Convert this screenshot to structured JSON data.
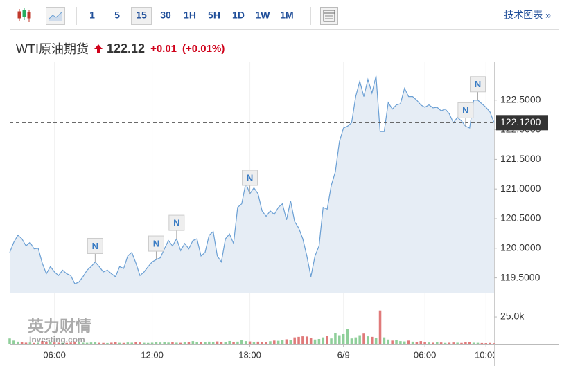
{
  "toolbar": {
    "intervals": [
      "1",
      "5",
      "15",
      "30",
      "1H",
      "5H",
      "1D",
      "1W",
      "1M"
    ],
    "selected_index": 2,
    "tech_chart": "技术图表 »"
  },
  "header": {
    "name": "WTI原油期货",
    "price": "122.12",
    "change": "+0.01",
    "change_pct": "(+0.01%)"
  },
  "watermark": {
    "brand": "英力财情",
    "site": "Investing.com"
  },
  "chart_data": {
    "type": "line",
    "color": "#6a9fd4",
    "fill_color": "#e6edf5",
    "grid": true,
    "values": [
      119.93,
      120.1,
      120.22,
      120.16,
      120.04,
      120.1,
      119.99,
      120.0,
      119.75,
      119.57,
      119.69,
      119.6,
      119.54,
      119.63,
      119.57,
      119.54,
      119.4,
      119.43,
      119.52,
      119.63,
      119.69,
      119.77,
      119.69,
      119.6,
      119.63,
      119.57,
      119.52,
      119.69,
      119.66,
      119.87,
      119.93,
      119.75,
      119.54,
      119.6,
      119.69,
      119.77,
      119.81,
      119.84,
      119.99,
      120.13,
      120.04,
      120.16,
      119.96,
      120.08,
      119.99,
      120.13,
      120.16,
      119.87,
      119.93,
      120.22,
      120.28,
      119.87,
      119.77,
      120.16,
      120.24,
      120.08,
      120.69,
      120.75,
      121.1,
      120.92,
      121.02,
      120.92,
      120.63,
      120.54,
      120.63,
      120.57,
      120.69,
      120.75,
      120.48,
      120.8,
      120.45,
      120.34,
      120.16,
      119.87,
      119.52,
      119.87,
      120.04,
      120.69,
      120.66,
      121.06,
      121.29,
      121.8,
      122.03,
      122.06,
      122.12,
      122.56,
      122.82,
      122.56,
      122.85,
      122.62,
      122.91,
      121.97,
      121.97,
      122.46,
      122.35,
      122.42,
      122.44,
      122.7,
      122.56,
      122.56,
      122.5,
      122.42,
      122.38,
      122.42,
      122.37,
      122.38,
      122.32,
      122.35,
      122.27,
      122.12,
      122.21,
      122.15,
      122.06,
      122.03,
      122.5,
      122.5,
      122.44,
      122.38,
      122.3,
      122.12
    ],
    "xlim": [
      0,
      119
    ],
    "xticks": [
      {
        "value": 11,
        "label": "06:00"
      },
      {
        "value": 35,
        "label": "12:00"
      },
      {
        "value": 59,
        "label": "18:00"
      },
      {
        "value": 82,
        "label": "6/9"
      },
      {
        "value": 102,
        "label": "06:00"
      },
      {
        "value": 117,
        "label": "10:00"
      }
    ],
    "ylim": [
      119.25,
      123.14
    ],
    "yticks": [
      {
        "value": 119.5,
        "label": "119.5000"
      },
      {
        "value": 120,
        "label": "120.0000"
      },
      {
        "value": 120.5,
        "label": "120.5000"
      },
      {
        "value": 121,
        "label": "121.0000"
      },
      {
        "value": 121.5,
        "label": "121.5000"
      },
      {
        "value": 122,
        "label": "122.0000"
      },
      {
        "value": 122.5,
        "label": "122.5000"
      }
    ],
    "last_value": {
      "value": 122.12,
      "label": "122.1200"
    },
    "events": [
      {
        "x": 21,
        "label": "N"
      },
      {
        "x": 36,
        "label": "N"
      },
      {
        "x": 41,
        "label": "N"
      },
      {
        "x": 59,
        "label": "N"
      },
      {
        "x": 112,
        "label": "N"
      },
      {
        "x": 115,
        "label": "N"
      }
    ],
    "volume": {
      "up_color": "#8fcf9a",
      "down_color": "#e07a7a",
      "ylim": [
        0,
        43000
      ],
      "yticks": [
        {
          "value": 25000,
          "label": "25.0k"
        }
      ],
      "values": [
        5000,
        3000,
        2000,
        1500,
        1000,
        1200,
        800,
        1000,
        2500,
        1800,
        1500,
        1200,
        1000,
        900,
        800,
        1100,
        2000,
        1400,
        1000,
        900,
        1200,
        1500,
        900,
        800,
        700,
        1000,
        1300,
        900,
        800,
        1200,
        1000,
        1500,
        1200,
        900,
        800,
        1000,
        1400,
        1200,
        1600,
        1100,
        1300,
        1000,
        900,
        1400,
        1800,
        2500,
        1800,
        1600,
        1500,
        2000,
        1400,
        2200,
        1800,
        1500,
        2600,
        1800,
        2000,
        3500,
        2500,
        2200,
        1800,
        2000,
        1700,
        1600,
        2400,
        3000,
        2800,
        3500,
        4200,
        3800,
        6000,
        6500,
        7000,
        6800,
        5500,
        4000,
        4500,
        6000,
        7500,
        5000,
        10000,
        8000,
        9000,
        13500,
        5000,
        6000,
        8000,
        9500,
        7000,
        6500,
        5500,
        31000,
        6000,
        4000,
        3000,
        3500,
        2500,
        2200,
        3000,
        2000,
        1800,
        2500,
        1500,
        1200,
        1000,
        1500,
        1200,
        800,
        1000,
        1200,
        1000,
        800,
        1500,
        1300,
        1000,
        900,
        700,
        600,
        800,
        500
      ]
    }
  }
}
